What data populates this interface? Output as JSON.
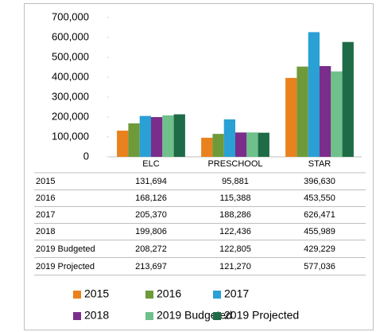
{
  "chart_data": {
    "type": "bar",
    "categories": [
      "ELC",
      "PRESCHOOL",
      "STAR"
    ],
    "series": [
      {
        "name": "2015",
        "color": "#e8821e",
        "values": [
          131694,
          95881,
          396630
        ],
        "value_labels": [
          "131,694",
          "95,881",
          "396,630"
        ]
      },
      {
        "name": "2016",
        "color": "#6e9a3a",
        "values": [
          168126,
          115388,
          453550
        ],
        "value_labels": [
          "168,126",
          "115,388",
          "453,550"
        ]
      },
      {
        "name": "2017",
        "color": "#2aa0d4",
        "values": [
          205370,
          188286,
          626471
        ],
        "value_labels": [
          "205,370",
          "188,286",
          "626,471"
        ]
      },
      {
        "name": "2018",
        "color": "#7b2d8b",
        "values": [
          199806,
          122436,
          455989
        ],
        "value_labels": [
          "199,806",
          "122,436",
          "455,989"
        ]
      },
      {
        "name": "2019 Budgeted",
        "color": "#6fc08a",
        "values": [
          208272,
          122805,
          429229
        ],
        "value_labels": [
          "208,272",
          "122,805",
          "429,229"
        ]
      },
      {
        "name": "2019 Projected",
        "color": "#1e6b47",
        "values": [
          213697,
          121270,
          577036
        ],
        "value_labels": [
          "213,697",
          "121,270",
          "577,036"
        ]
      }
    ],
    "ylim": [
      0,
      700000
    ],
    "yticks": [
      0,
      {
        "value": 100000,
        "label": "100,000"
      },
      {
        "value": 200000,
        "label": "200,000"
      },
      {
        "value": 300000,
        "label": "300,000"
      },
      {
        "value": 400000,
        "label": "400,000"
      },
      {
        "value": 500000,
        "label": "500,000"
      },
      {
        "value": 600000,
        "label": "600,000"
      },
      {
        "value": 700000,
        "label": "700,000"
      }
    ],
    "legend": "bottom"
  }
}
